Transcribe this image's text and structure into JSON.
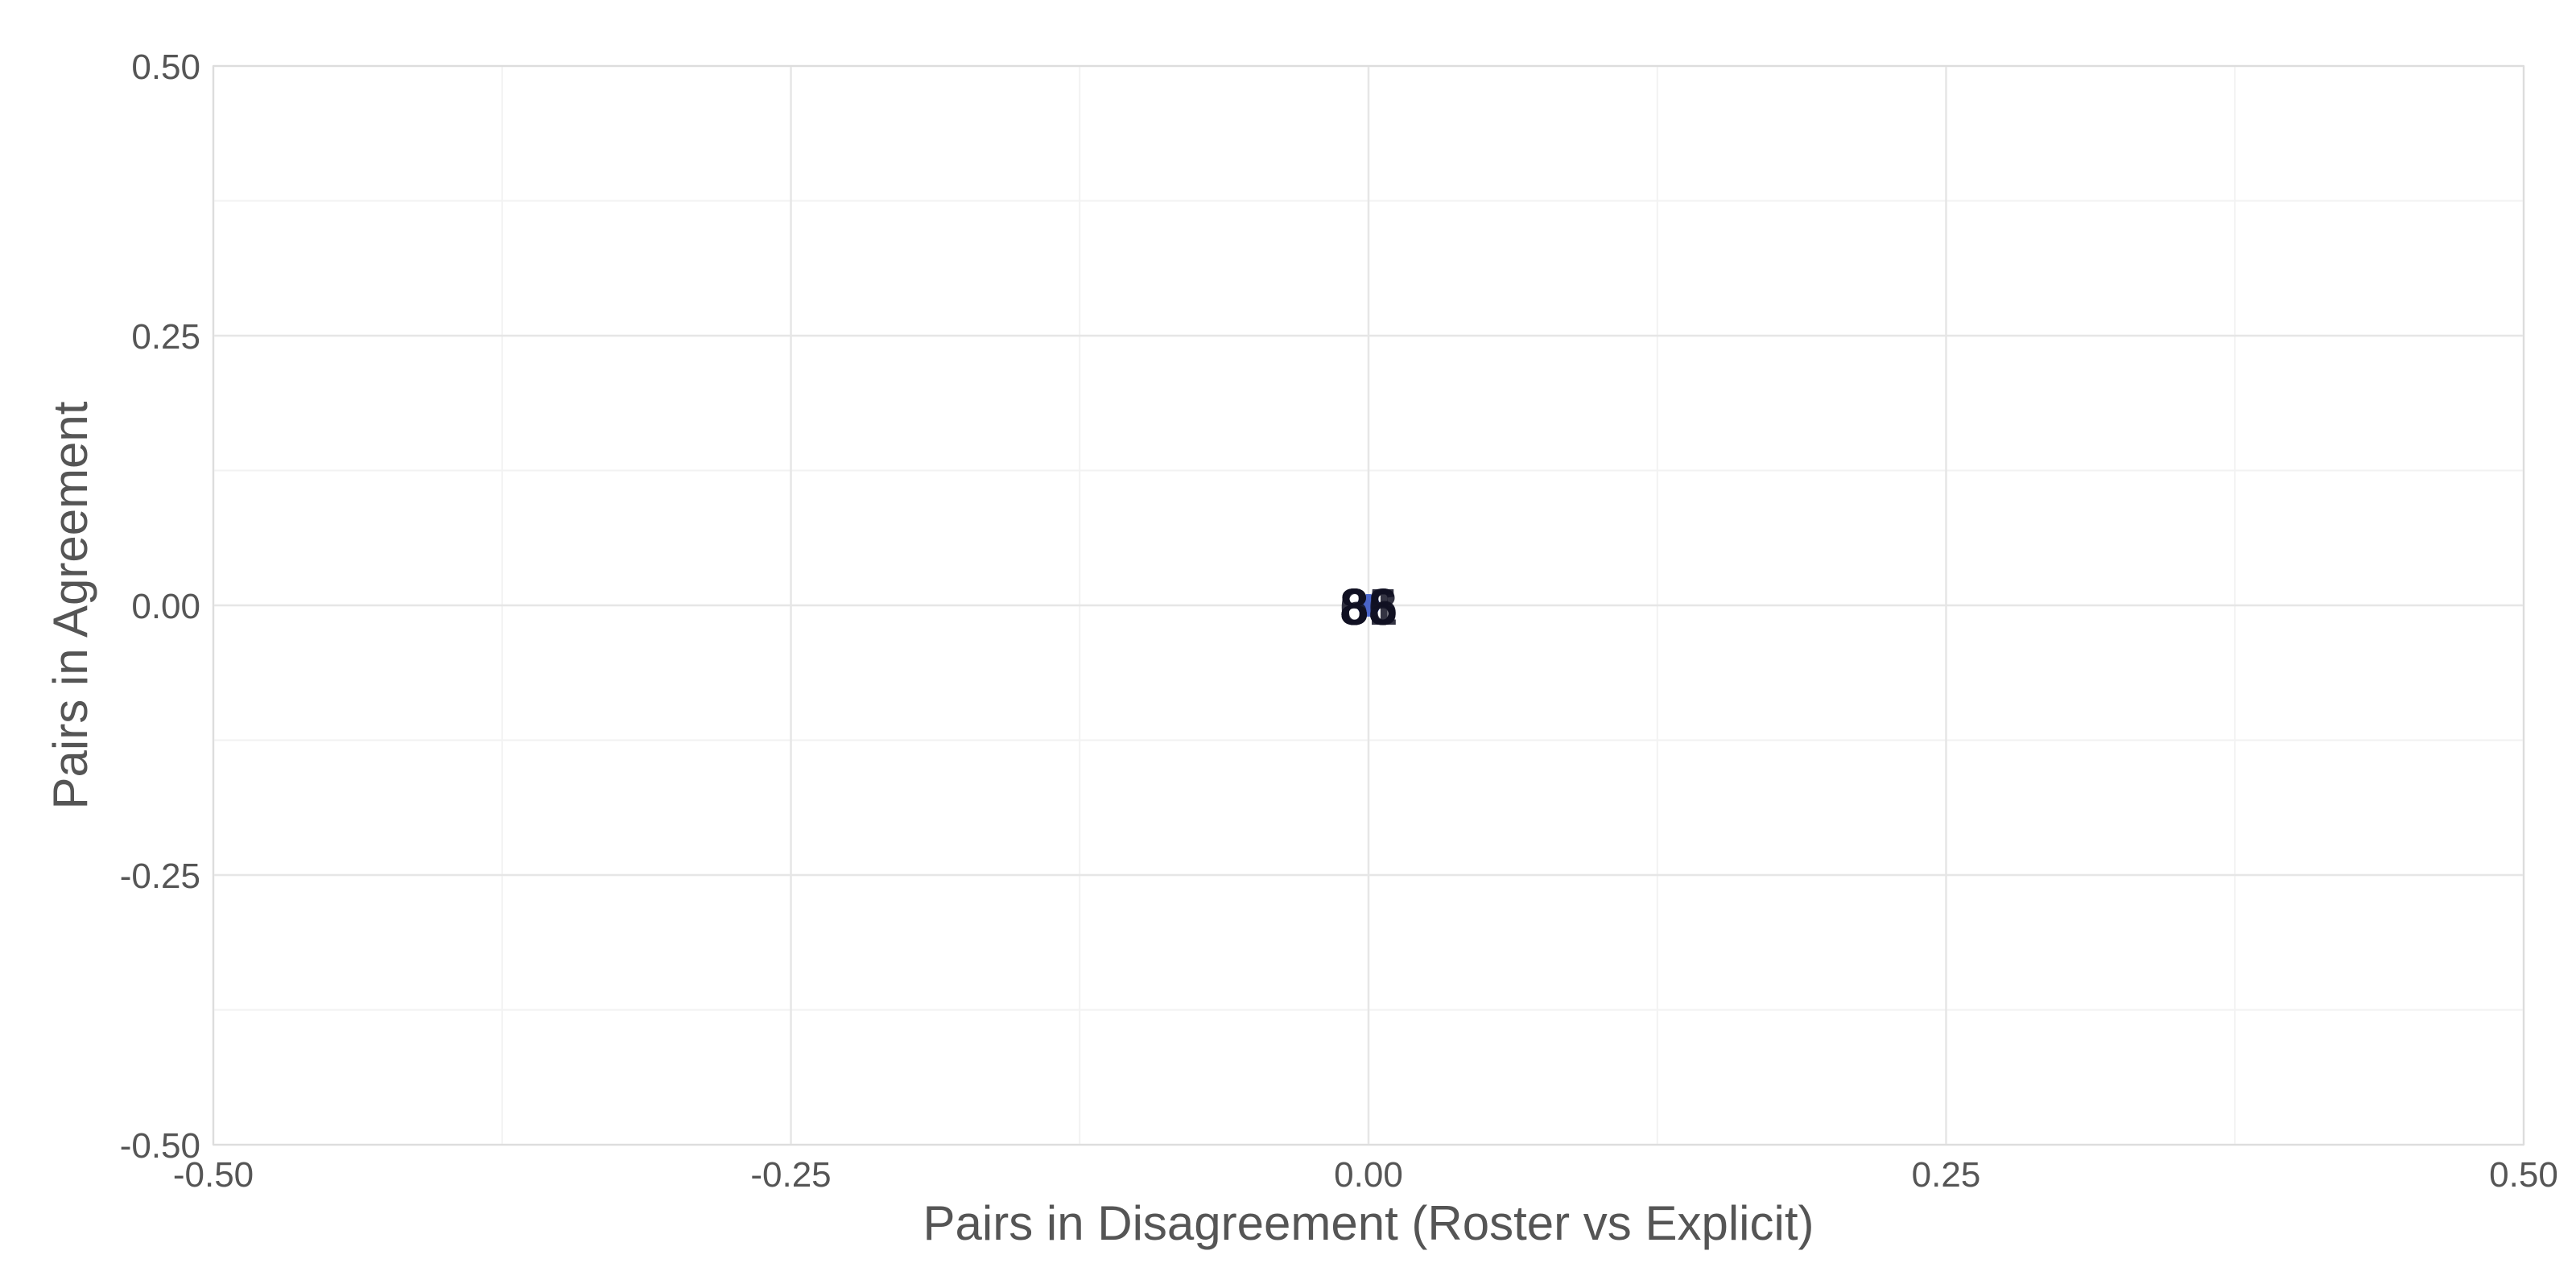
{
  "chart_data": {
    "type": "scatter",
    "title": "",
    "xlabel": "Pairs in Disagreement (Roster vs Explicit)",
    "ylabel": "Pairs in Agreement",
    "xlim": [
      -0.5,
      0.5
    ],
    "ylim": [
      -0.5,
      0.5
    ],
    "x_ticks": [
      "-0.50",
      "-0.25",
      "0.00",
      "0.25",
      "0.50"
    ],
    "y_ticks": [
      "-0.50",
      "-0.25",
      "0.00",
      "0.25",
      "0.50"
    ],
    "grid": true,
    "legend": "none",
    "point_color": "#4a64c8",
    "points": [
      {
        "x": 0.0,
        "y": 0.0,
        "label": "66"
      },
      {
        "x": 0.0,
        "y": 0.0,
        "label": "81"
      },
      {
        "x": 0.0,
        "y": 0.0,
        "label": "85"
      },
      {
        "x": 0.0,
        "y": 0.0,
        "label": "88"
      }
    ]
  }
}
